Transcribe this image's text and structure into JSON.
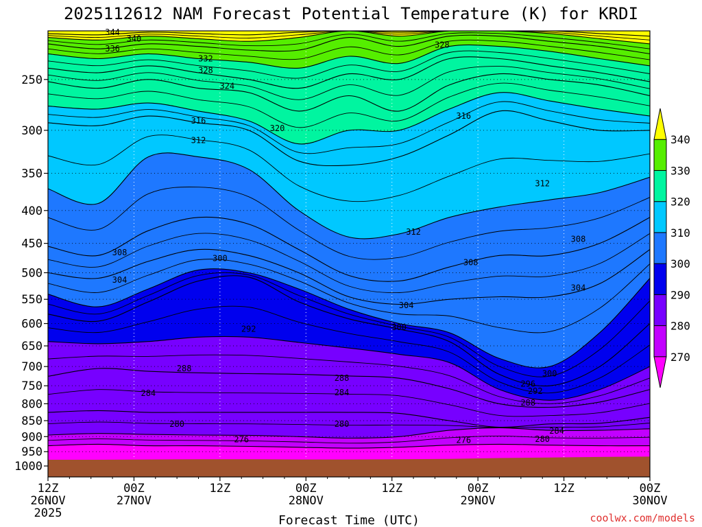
{
  "chart_data": {
    "type": "heatmap",
    "title": "2025112612 NAM Forecast Potential Temperature (K) for KRDI",
    "xlabel": "Forecast Time (UTC)",
    "ylabel": "",
    "y_scale": "log",
    "y_reversed": true,
    "y_ticks": [
      250,
      300,
      350,
      400,
      450,
      500,
      550,
      600,
      650,
      700,
      750,
      800,
      850,
      900,
      950,
      1000
    ],
    "ylim": [
      1040,
      210
    ],
    "x_ticks": [
      {
        "top": "12Z",
        "bottom": "26NOV",
        "extra": "2025"
      },
      {
        "top": "00Z",
        "bottom": "27NOV",
        "extra": ""
      },
      {
        "top": "12Z",
        "bottom": "",
        "extra": ""
      },
      {
        "top": "00Z",
        "bottom": "28NOV",
        "extra": ""
      },
      {
        "top": "12Z",
        "bottom": "",
        "extra": ""
      },
      {
        "top": "00Z",
        "bottom": "29NOV",
        "extra": ""
      },
      {
        "top": "12Z",
        "bottom": "",
        "extra": ""
      },
      {
        "top": "00Z",
        "bottom": "30NOV",
        "extra": ""
      }
    ],
    "x_hours": [
      0,
      12,
      24,
      36,
      48,
      60,
      72,
      84
    ],
    "xlim": [
      0,
      84
    ],
    "grid": true,
    "colorbar": {
      "levels": [
        270,
        280,
        290,
        300,
        310,
        320,
        330,
        340
      ],
      "colors": [
        "#ff00ff",
        "#c200ff",
        "#7700ff",
        "#0000ee",
        "#1e78ff",
        "#00c8ff",
        "#00f5a0",
        "#55ee00",
        "#ffff00"
      ],
      "placement": "right"
    },
    "isentropes": [
      {
        "theta": 276,
        "p": [
          930,
          925,
          930,
          930,
          932,
          935,
          938,
          935,
          928,
          925,
          928,
          930,
          930
        ]
      },
      {
        "theta": 280,
        "p": [
          895,
          890,
          893,
          895,
          896,
          900,
          905,
          900,
          880,
          872,
          880,
          880,
          875
        ]
      },
      {
        "theta": 284,
        "p": [
          825,
          820,
          825,
          825,
          825,
          825,
          825,
          828,
          850,
          870,
          860,
          858,
          840
        ]
      },
      {
        "theta": 288,
        "p": [
          725,
          705,
          712,
          716,
          718,
          720,
          724,
          730,
          758,
          800,
          810,
          795,
          760
        ]
      },
      {
        "theta": 292,
        "p": [
          640,
          645,
          640,
          630,
          630,
          642,
          655,
          670,
          690,
          760,
          790,
          760,
          700
        ]
      },
      {
        "theta": 296,
        "p": [
          580,
          595,
          555,
          515,
          508,
          555,
          590,
          612,
          640,
          720,
          750,
          700,
          600
        ]
      },
      {
        "theta": 300,
        "p": [
          540,
          565,
          530,
          495,
          500,
          530,
          570,
          600,
          620,
          680,
          700,
          620,
          510
        ]
      },
      {
        "theta": 304,
        "p": [
          500,
          510,
          480,
          460,
          470,
          500,
          545,
          560,
          550,
          545,
          545,
          520,
          460
        ]
      },
      {
        "theta": 308,
        "p": [
          455,
          470,
          430,
          410,
          420,
          460,
          505,
          515,
          490,
          470,
          470,
          450,
          410
        ]
      },
      {
        "theta": 312,
        "p": [
          370,
          390,
          330,
          330,
          345,
          400,
          440,
          435,
          410,
          395,
          385,
          375,
          355
        ]
      },
      {
        "theta": 316,
        "p": [
          292,
          295,
          285,
          292,
          300,
          335,
          340,
          330,
          305,
          280,
          290,
          300,
          300
        ]
      },
      {
        "theta": 320,
        "p": [
          275,
          278,
          272,
          280,
          290,
          315,
          300,
          300,
          278,
          262,
          270,
          278,
          285
        ]
      },
      {
        "theta": 324,
        "p": [
          252,
          258,
          250,
          258,
          262,
          280,
          265,
          280,
          255,
          245,
          250,
          255,
          265
        ]
      },
      {
        "theta": 328,
        "p": [
          240,
          244,
          238,
          244,
          250,
          258,
          245,
          250,
          232,
          232,
          238,
          244,
          252
        ]
      },
      {
        "theta": 332,
        "p": [
          228,
          232,
          228,
          232,
          235,
          240,
          230,
          236,
          222,
          222,
          226,
          232,
          238
        ]
      },
      {
        "theta": 336,
        "p": [
          220,
          224,
          220,
          222,
          225,
          225,
          215,
          222,
          214,
          214,
          218,
          222,
          228
        ]
      },
      {
        "theta": 340,
        "p": [
          215,
          217,
          214,
          216,
          218,
          215,
          210,
          214,
          210,
          210,
          212,
          216,
          220
        ]
      },
      {
        "theta": 344,
        "p": [
          212,
          213,
          211,
          212,
          213,
          211,
          210,
          211,
          210,
          210,
          210,
          212,
          214
        ]
      }
    ],
    "isentrope_x_hours": [
      0,
      7,
      14,
      21,
      28,
      35,
      42,
      49,
      56,
      63,
      70,
      77,
      84
    ],
    "contour_labels": [
      {
        "text": "344",
        "x": 9,
        "p": 211
      },
      {
        "text": "340",
        "x": 12,
        "p": 216
      },
      {
        "text": "336",
        "x": 9,
        "p": 224
      },
      {
        "text": "332",
        "x": 22,
        "p": 232
      },
      {
        "text": "328",
        "x": 22,
        "p": 242
      },
      {
        "text": "324",
        "x": 25,
        "p": 256
      },
      {
        "text": "328",
        "x": 55,
        "p": 221
      },
      {
        "text": "316",
        "x": 21,
        "p": 290
      },
      {
        "text": "312",
        "x": 21,
        "p": 311
      },
      {
        "text": "320",
        "x": 32,
        "p": 298
      },
      {
        "text": "316",
        "x": 58,
        "p": 285
      },
      {
        "text": "312",
        "x": 69,
        "p": 363
      },
      {
        "text": "312",
        "x": 51,
        "p": 432
      },
      {
        "text": "308",
        "x": 10,
        "p": 465
      },
      {
        "text": "304",
        "x": 10,
        "p": 513
      },
      {
        "text": "308",
        "x": 59,
        "p": 482
      },
      {
        "text": "308",
        "x": 74,
        "p": 443
      },
      {
        "text": "304",
        "x": 74,
        "p": 528
      },
      {
        "text": "304",
        "x": 50,
        "p": 562
      },
      {
        "text": "300",
        "x": 24,
        "p": 475
      },
      {
        "text": "300",
        "x": 49,
        "p": 608
      },
      {
        "text": "292",
        "x": 28,
        "p": 612
      },
      {
        "text": "300",
        "x": 70,
        "p": 718
      },
      {
        "text": "296",
        "x": 67,
        "p": 745
      },
      {
        "text": "292",
        "x": 68,
        "p": 765
      },
      {
        "text": "288",
        "x": 67,
        "p": 797
      },
      {
        "text": "288",
        "x": 19,
        "p": 705
      },
      {
        "text": "288",
        "x": 41,
        "p": 730
      },
      {
        "text": "284",
        "x": 14,
        "p": 770
      },
      {
        "text": "284",
        "x": 41,
        "p": 768
      },
      {
        "text": "284",
        "x": 71,
        "p": 882
      },
      {
        "text": "280",
        "x": 18,
        "p": 860
      },
      {
        "text": "280",
        "x": 41,
        "p": 860
      },
      {
        "text": "280",
        "x": 69,
        "p": 908
      },
      {
        "text": "276",
        "x": 27,
        "p": 910
      },
      {
        "text": "276",
        "x": 58,
        "p": 912
      }
    ],
    "ground_color": "#a0522d",
    "ground_p": [
      978,
      978,
      977,
      976,
      976,
      977,
      977,
      976,
      975,
      972,
      970,
      968,
      967
    ]
  },
  "credit": "coolwx.com/models"
}
